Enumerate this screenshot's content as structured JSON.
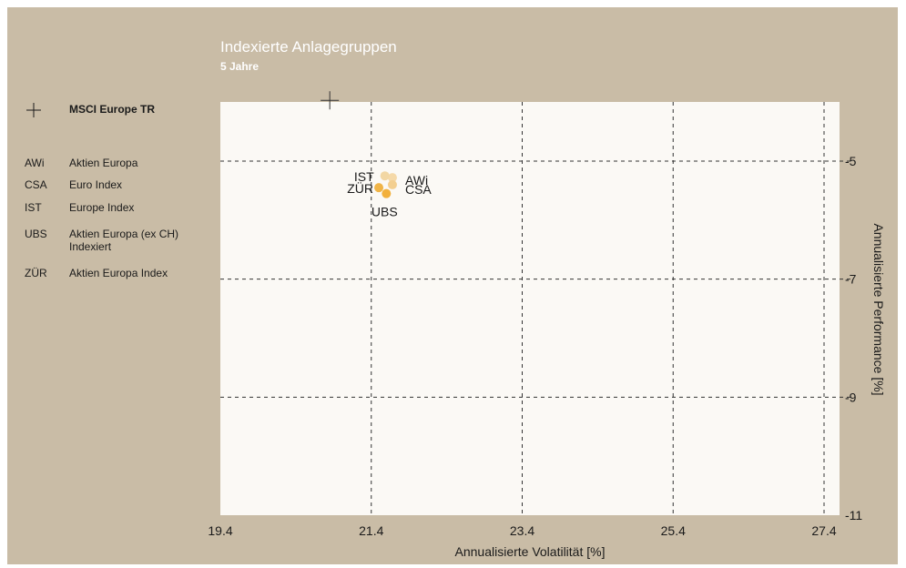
{
  "header": {
    "title": "Indexierte Anlagegruppen",
    "subtitle": "5 Jahre"
  },
  "legend": {
    "benchmark": {
      "symbol": "+",
      "name": "MSCI Europe TR"
    },
    "items": [
      {
        "code": "AWi",
        "name": "Aktien Europa"
      },
      {
        "code": "CSA",
        "name": "Euro Index"
      },
      {
        "code": "IST",
        "name": "Europe Index"
      },
      {
        "code": "UBS",
        "name": "Aktien Europa (ex CH) Indexiert"
      },
      {
        "code": "ZÜR",
        "name": "Aktien Europa Index"
      }
    ]
  },
  "chart_data": {
    "type": "scatter",
    "xlabel": "Annualisierte Volatilität [%]",
    "ylabel": "Annualisierte Performance [%]",
    "xlim": [
      19.4,
      27.4
    ],
    "ylim": [
      -11,
      -4.0
    ],
    "xticks": [
      "19.4",
      "21.4",
      "23.4",
      "25.4",
      "27.4"
    ],
    "yticks": [
      "-5",
      "-7",
      "-9",
      "-11"
    ],
    "grid": true,
    "benchmark": {
      "name": "MSCI Europe TR",
      "x": 20.85,
      "y": -3.97
    },
    "points": [
      {
        "label": "AWi",
        "x": 21.68,
        "y": -5.28,
        "color": "#f5d9a8"
      },
      {
        "label": "CSA",
        "x": 21.68,
        "y": -5.4,
        "color": "#f3cf90"
      },
      {
        "label": "IST",
        "x": 21.58,
        "y": -5.25,
        "color": "#f2d7a4"
      },
      {
        "label": "UBS",
        "x": 21.6,
        "y": -5.55,
        "color": "#f2b03c"
      },
      {
        "label": "ZÜR",
        "x": 21.5,
        "y": -5.45,
        "color": "#f0b447"
      }
    ]
  }
}
